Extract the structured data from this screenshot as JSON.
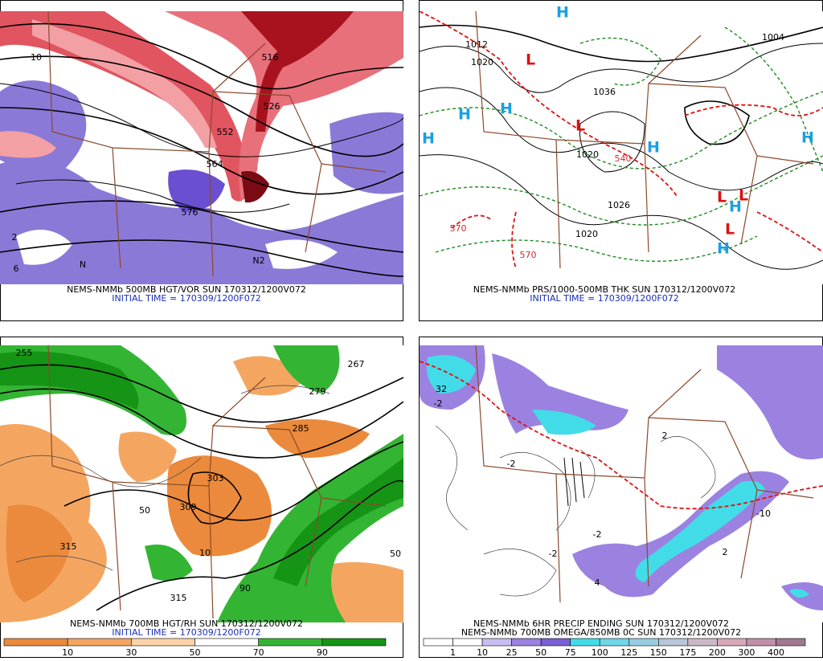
{
  "panels": [
    {
      "caption": "NEMS-NMMb 500MB HGT/VOR SUN 170312/1200V072",
      "initial_time": "INITIAL TIME = 170309/1200F072",
      "labels": [
        "552",
        "564",
        "526",
        "576",
        "516",
        "10",
        "N",
        "N2",
        "2",
        "6"
      ]
    },
    {
      "caption": "NEMS-NMMb PRS/1000-500MB THK SUN 170312/1200V072",
      "initial_time": "INITIAL TIME = 170309/1200F072",
      "labels": [
        "L",
        "L",
        "L",
        "L",
        "L",
        "H",
        "H",
        "H",
        "H",
        "H",
        "H",
        "H",
        "H",
        "1020",
        "1020",
        "1026",
        "1020",
        "1036",
        "540",
        "570",
        "570",
        "1004",
        "1012"
      ]
    },
    {
      "caption": "NEMS-NMMb 700MB HGT/RH SUN 170312/1200V072",
      "initial_time": "INITIAL TIME = 170309/1200F072",
      "labels": [
        "303",
        "309",
        "315",
        "285",
        "279",
        "267",
        "255",
        "315",
        "50",
        "10",
        "90",
        "50"
      ],
      "colorbar": {
        "labels": [
          "10",
          "30",
          "50",
          "70",
          "90"
        ],
        "colors": [
          "#eb8a3c",
          "#f4a661",
          "#fbd3a8",
          "#ffffff",
          "#33b533",
          "#159415"
        ]
      }
    },
    {
      "caption": "NEMS-NMMb 6HR PRECIP ENDING SUN 170312/1200V072",
      "caption2": "NEMS-NMMb 700MB OMEGA/850MB 0C SUN 170312/1200V072",
      "labels": [
        "32",
        "-2",
        "-2",
        "2",
        "-2",
        "-10",
        "4",
        "-2",
        "2"
      ],
      "colorbar": {
        "labels": [
          "1",
          "10",
          "25",
          "50",
          "75",
          "100",
          "125",
          "150",
          "175",
          "200",
          "300",
          "400"
        ],
        "colors": [
          "#ffffff",
          "#ffffff",
          "#c9bdf0",
          "#9b82e0",
          "#7a5fd4",
          "#42dce8",
          "#6fd6e6",
          "#98cde0",
          "#b8c6d8",
          "#cdb8c8",
          "#d8a8b8",
          "#c090a8",
          "#a07890"
        ]
      }
    }
  ]
}
